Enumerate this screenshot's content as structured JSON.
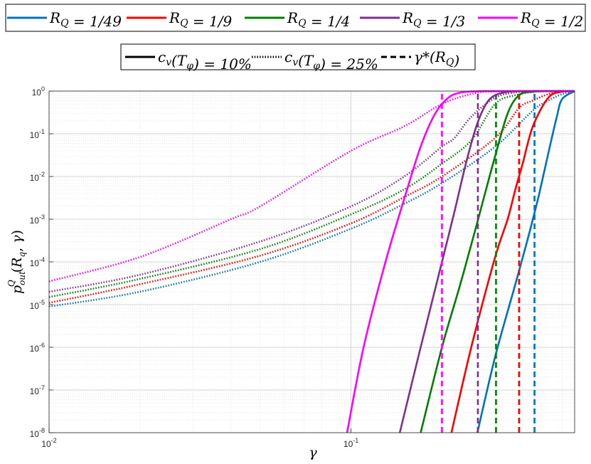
{
  "chart_data": {
    "type": "line",
    "x_scale": "log",
    "y_scale": "log",
    "xlim": [
      0.01,
      0.55
    ],
    "ylim": [
      1e-08,
      1
    ],
    "grid": true,
    "xlabel": "γ",
    "ylabel": "p^Q_out(R_q, γ)",
    "x_ticks": [
      {
        "value": 0.01,
        "base": "10",
        "exp": "-2"
      },
      {
        "value": 0.1,
        "base": "10",
        "exp": "-1"
      }
    ],
    "y_ticks": [
      {
        "value": 1,
        "base": "10",
        "exp": "0"
      },
      {
        "value": 0.1,
        "base": "10",
        "exp": "-1"
      },
      {
        "value": 0.01,
        "base": "10",
        "exp": "-2"
      },
      {
        "value": 0.001,
        "base": "10",
        "exp": "-3"
      },
      {
        "value": 0.0001,
        "base": "10",
        "exp": "-4"
      },
      {
        "value": 1e-05,
        "base": "10",
        "exp": "-5"
      },
      {
        "value": 1e-06,
        "base": "10",
        "exp": "-6"
      },
      {
        "value": 1e-07,
        "base": "10",
        "exp": "-7"
      },
      {
        "value": 1e-08,
        "base": "10",
        "exp": "-8"
      }
    ],
    "legend_top": {
      "placement": "top",
      "entries": [
        {
          "label": "R_Q = 1/49",
          "color": "#0072BD"
        },
        {
          "label": "R_Q = 1/9",
          "color": "#FF0000"
        },
        {
          "label": "R_Q = 1/4",
          "color": "#008000"
        },
        {
          "label": "R_Q = 1/3",
          "color": "#7E2F8E"
        },
        {
          "label": "R_Q = 1/2",
          "color": "#FF00FF"
        }
      ]
    },
    "legend_styles": {
      "placement": "top",
      "entries": [
        {
          "label": "c_v(T_φ) = 10%",
          "style": "solid"
        },
        {
          "label": "c_v(T_φ) = 25%",
          "style": "dotted"
        },
        {
          "label": "γ*(R_Q)",
          "style": "dashed"
        }
      ]
    },
    "series": [
      {
        "name": "R_Q = 1/49",
        "color": "#0072BD",
        "threshold_gamma": 0.405,
        "solid": {
          "x": [
            0.262,
            0.3,
            0.35,
            0.38,
            0.4,
            0.42,
            0.45,
            0.48,
            0.5,
            0.55
          ],
          "y": [
            1e-08,
            6e-07,
            3e-05,
            0.00025,
            0.001,
            0.004,
            0.035,
            0.25,
            0.65,
            1
          ]
        },
        "dotted": {
          "x": [
            0.01,
            0.02,
            0.05,
            0.1,
            0.15,
            0.2,
            0.3,
            0.4,
            0.45,
            0.5,
            0.55
          ],
          "y": [
            9e-06,
            2e-05,
            0.0001,
            0.0006,
            0.0023,
            0.007,
            0.05,
            0.35,
            0.6,
            0.85,
            1
          ]
        }
      },
      {
        "name": "R_Q = 1/9",
        "color": "#FF0000",
        "threshold_gamma": 0.36,
        "solid": {
          "x": [
            0.215,
            0.25,
            0.3,
            0.33,
            0.35,
            0.37,
            0.4,
            0.45,
            0.5,
            0.55
          ],
          "y": [
            1e-08,
            1e-06,
            0.00013,
            0.001,
            0.005,
            0.02,
            0.15,
            0.7,
            0.97,
            1
          ]
        },
        "dotted": {
          "x": [
            0.01,
            0.02,
            0.05,
            0.1,
            0.15,
            0.2,
            0.3,
            0.36,
            0.4,
            0.45,
            0.5,
            0.55
          ],
          "y": [
            1.1e-05,
            3e-05,
            0.00014,
            0.0008,
            0.0033,
            0.01,
            0.08,
            0.4,
            0.6,
            0.85,
            0.97,
            1
          ]
        }
      },
      {
        "name": "R_Q = 1/4",
        "color": "#008000",
        "threshold_gamma": 0.302,
        "solid": {
          "x": [
            0.17,
            0.2,
            0.23,
            0.26,
            0.28,
            0.3,
            0.33,
            0.36,
            0.4,
            0.45,
            0.55
          ],
          "y": [
            1e-08,
            1e-06,
            3e-05,
            0.0007,
            0.005,
            0.03,
            0.3,
            0.8,
            0.97,
            1,
            1
          ]
        },
        "dotted": {
          "x": [
            0.01,
            0.02,
            0.05,
            0.1,
            0.15,
            0.2,
            0.25,
            0.3,
            0.35,
            0.4,
            0.45,
            0.55
          ],
          "y": [
            1.5e-05,
            4e-05,
            0.0002,
            0.0013,
            0.005,
            0.02,
            0.07,
            0.5,
            0.8,
            0.95,
            0.99,
            1
          ]
        }
      },
      {
        "name": "R_Q = 1/3",
        "color": "#7E2F8E",
        "threshold_gamma": 0.263,
        "solid": {
          "x": [
            0.145,
            0.17,
            0.2,
            0.22,
            0.24,
            0.26,
            0.28,
            0.3,
            0.33,
            0.36,
            0.4,
            0.55
          ],
          "y": [
            1e-08,
            1e-06,
            0.0001,
            0.0015,
            0.02,
            0.15,
            0.5,
            0.8,
            0.96,
            0.99,
            1,
            1
          ]
        },
        "dotted": {
          "x": [
            0.01,
            0.02,
            0.05,
            0.1,
            0.15,
            0.2,
            0.22,
            0.25,
            0.3,
            0.35,
            0.4,
            0.55
          ],
          "y": [
            2e-05,
            5e-05,
            0.0003,
            0.002,
            0.01,
            0.05,
            0.08,
            0.25,
            0.7,
            0.93,
            0.99,
            1
          ]
        }
      },
      {
        "name": "R_Q = 1/2",
        "color": "#FF00FF",
        "threshold_gamma": 0.2,
        "solid": {
          "x": [
            0.097,
            0.11,
            0.13,
            0.15,
            0.17,
            0.19,
            0.21,
            0.23,
            0.26,
            0.3,
            0.55
          ],
          "y": [
            1e-08,
            1e-06,
            0.0001,
            0.003,
            0.05,
            0.3,
            0.7,
            0.92,
            0.99,
            1,
            1
          ]
        },
        "dotted": {
          "x": [
            0.01,
            0.02,
            0.04,
            0.05,
            0.1,
            0.15,
            0.2,
            0.25,
            0.3,
            0.55
          ],
          "y": [
            3.5e-05,
            0.00013,
            0.001,
            0.002,
            0.04,
            0.15,
            0.5,
            0.85,
            0.98,
            1
          ]
        }
      }
    ]
  }
}
